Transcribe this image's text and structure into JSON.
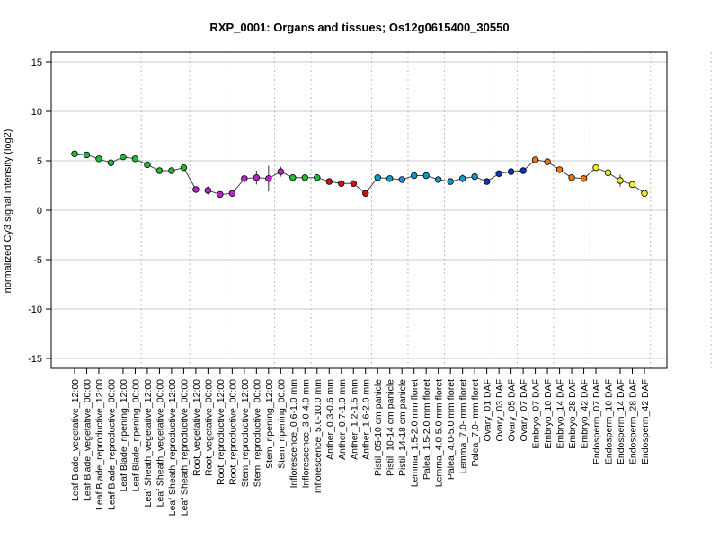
{
  "chart_data": {
    "type": "line",
    "title": "RXP_0001: Organs and tissues; Os12g0615400_30550",
    "xlabel": "",
    "ylabel": "normalized Cy3 signal intensity (log2)",
    "ylim": [
      -16,
      16
    ],
    "yticks": [
      -15,
      -10,
      -5,
      0,
      5,
      10,
      15
    ],
    "grid": true,
    "group_separators_after": [
      5,
      9,
      12,
      16,
      19,
      24,
      27,
      30,
      34,
      36,
      39,
      42,
      47,
      52
    ],
    "categories": [
      "Leaf Blade_vegetative_12:00",
      "Leaf Blade_vegetative_00:00",
      "Leaf Blade_reproductive_12:00",
      "Leaf Blade_reproductive_00:00",
      "Leaf Blade_ripening_12:00",
      "Leaf Blade_ripening_00:00",
      "Leaf Sheath_vegetative_12:00",
      "Leaf Sheath_vegetative_00:00",
      "Leaf Sheath_reproductive_12:00",
      "Leaf Sheath_reproductive_00:00",
      "Root_vegetative_12:00",
      "Root_vegetative_00:00",
      "Root_reproductive_12:00",
      "Root_reproductive_00:00",
      "Stem_reproductive_12:00",
      "Stem_reproductive_00:00",
      "Stem_ripening_12:00",
      "Stem_ripening_00:00",
      "Inflorescence_0.6-1.0 mm",
      "Inflorescence_3.0-4.0 mm",
      "Inflorescence_5.0-10.0 mm",
      "Anther_0.3-0.6 mm",
      "Anther_0.7-1.0 mm",
      "Anther_1.2-1.5 mm",
      "Anther_1.6-2.0 mm",
      "Pistil_05-10 cm panicle",
      "Pistil_10-14 cm panicle",
      "Pistil_14-18 cm panicle",
      "Lemma_1.5-2.0 mm floret",
      "Palea_1.5-2.0 mm floret",
      "Lemma_4.0-5.0 mm floret",
      "Palea_4.0-5.0 mm floret",
      "Lemma_7.0- mm floret",
      "Palea_7.0- mm floret",
      "Ovary_01 DAF",
      "Ovary_03 DAF",
      "Ovary_05 DAF",
      "Ovary_07 DAF",
      "Embryo_07 DAF",
      "Embryo_10 DAF",
      "Embryo_14 DAF",
      "Embryo_28 DAF",
      "Embryo_42 DAF",
      "Endosperm_07 DAF",
      "Endosperm_10 DAF",
      "Endosperm_14 DAF",
      "Endosperm_28 DAF",
      "Endosperm_42 DAF"
    ],
    "series": [
      {
        "values": [
          5.7,
          5.6,
          5.2,
          4.8,
          5.4,
          5.2,
          4.6,
          4.0,
          4.0,
          4.3,
          2.1,
          2.0,
          1.6,
          1.7,
          3.2,
          3.3,
          3.2,
          3.9,
          3.3,
          3.3,
          3.3,
          2.9,
          2.7,
          2.7,
          1.7,
          3.3,
          3.2,
          3.1,
          3.5,
          3.5,
          3.1,
          2.9,
          3.2,
          3.4,
          2.9,
          3.7,
          3.9,
          4.0,
          5.1,
          4.9,
          4.1,
          3.3,
          3.2,
          4.3,
          3.8,
          3.0,
          2.6,
          1.7
        ],
        "error": [
          0.15,
          0.15,
          0.1,
          0.1,
          0.1,
          0.1,
          0.15,
          0.1,
          0.1,
          0.2,
          0.1,
          0.4,
          0.1,
          0.1,
          0.1,
          0.7,
          1.3,
          0.5,
          0.1,
          0.1,
          0.1,
          0.1,
          0.1,
          0.2,
          0.1,
          0.1,
          0.1,
          0.1,
          0.1,
          0.1,
          0.1,
          0.1,
          0.4,
          0.1,
          0.1,
          0.1,
          0.1,
          0.1,
          0.1,
          0.1,
          0.3,
          0.1,
          0.1,
          0.1,
          0.2,
          0.6,
          0.3,
          0.1
        ],
        "colors": [
          "#22bb33",
          "#22bb33",
          "#22bb33",
          "#22bb33",
          "#22bb33",
          "#22bb33",
          "#22bb33",
          "#22bb33",
          "#22bb33",
          "#22bb33",
          "#bb22cc",
          "#bb22cc",
          "#bb22cc",
          "#bb22cc",
          "#bb22cc",
          "#bb22cc",
          "#bb22cc",
          "#bb22cc",
          "#22bb33",
          "#22bb33",
          "#22bb33",
          "#cc1111",
          "#cc1111",
          "#cc1111",
          "#cc1111",
          "#1199cc",
          "#1199cc",
          "#1199cc",
          "#1199cc",
          "#1199cc",
          "#1199cc",
          "#1199cc",
          "#1199cc",
          "#1199cc",
          "#1133bb",
          "#1133bb",
          "#1133bb",
          "#1133bb",
          "#ee7711",
          "#ee7711",
          "#ee7711",
          "#ee7711",
          "#ee7711",
          "#eeee22",
          "#eeee22",
          "#eeee22",
          "#eeee22",
          "#eeee22"
        ]
      }
    ]
  }
}
